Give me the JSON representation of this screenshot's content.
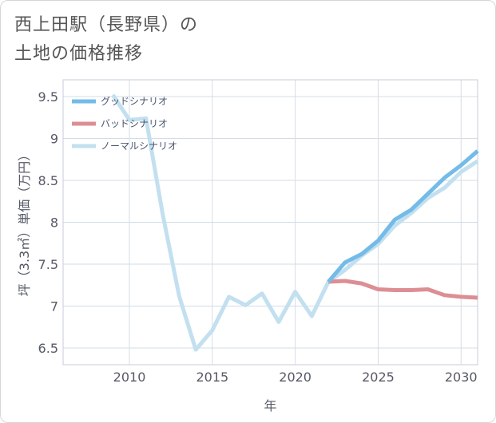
{
  "title_line1": "西上田駅（長野県）の",
  "title_line2": "土地の価格推移",
  "chart_data": {
    "type": "line",
    "title": "西上田駅（長野県）の土地の価格推移",
    "xlabel": "年",
    "ylabel": "坪（3.3㎡）単価（万円）",
    "xlim": [
      2006,
      2031
    ],
    "ylim": [
      6.3,
      9.7
    ],
    "xticks": [
      2010,
      2015,
      2020,
      2025,
      2030
    ],
    "yticks": [
      6.5,
      7,
      7.5,
      8,
      8.5,
      9,
      9.5
    ],
    "ytick_labels": [
      "6.5",
      "7",
      "7.5",
      "8",
      "8.5",
      "9",
      "9.5"
    ],
    "legend_position": "top-left",
    "series": [
      {
        "name": "グッドシナリオ",
        "color": "#74bbe8",
        "x": [
          2022,
          2023,
          2024,
          2025,
          2026,
          2027,
          2028,
          2029,
          2030,
          2031
        ],
        "values": [
          7.29,
          7.52,
          7.62,
          7.78,
          8.03,
          8.15,
          8.34,
          8.53,
          8.68,
          8.85
        ]
      },
      {
        "name": "バッドシナリオ",
        "color": "#dd8e95",
        "x": [
          2022,
          2023,
          2024,
          2025,
          2026,
          2027,
          2028,
          2029,
          2030,
          2031
        ],
        "values": [
          7.29,
          7.3,
          7.27,
          7.2,
          7.19,
          7.19,
          7.2,
          7.13,
          7.11,
          7.1
        ]
      },
      {
        "name": "ノーマルシナリオ",
        "color": "#c2e0ef",
        "x": [
          2009,
          2010,
          2011,
          2012,
          2013,
          2014,
          2015,
          2016,
          2017,
          2018,
          2019,
          2020,
          2021,
          2022,
          2023,
          2024,
          2025,
          2026,
          2027,
          2028,
          2029,
          2030,
          2031
        ],
        "values": [
          9.52,
          9.22,
          9.24,
          8.1,
          7.12,
          6.48,
          6.71,
          7.11,
          7.01,
          7.15,
          6.81,
          7.17,
          6.88,
          7.29,
          7.43,
          7.6,
          7.74,
          7.96,
          8.11,
          8.29,
          8.41,
          8.6,
          8.73
        ]
      }
    ]
  }
}
